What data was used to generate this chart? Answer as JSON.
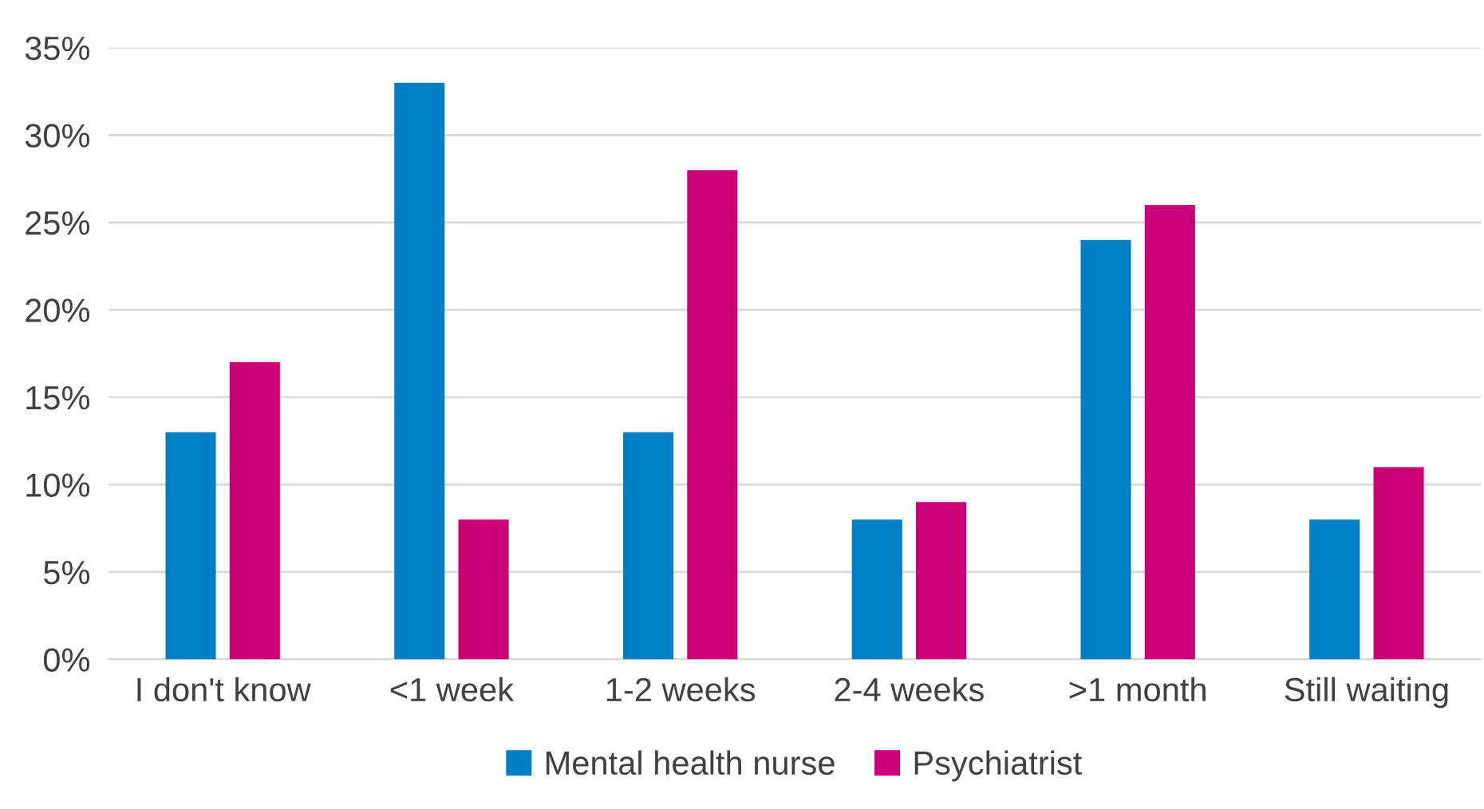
{
  "chart_data": {
    "type": "bar",
    "categories": [
      "I don't know",
      "<1 week",
      "1-2 weeks",
      "2-4 weeks",
      ">1 month",
      "Still waiting"
    ],
    "series": [
      {
        "name": "Mental health nurse",
        "color": "#0080c4",
        "values": [
          13,
          33,
          13,
          8,
          24,
          8
        ]
      },
      {
        "name": "Psychiatrist",
        "color": "#cc0077",
        "values": [
          17,
          8,
          28,
          9,
          26,
          11
        ]
      }
    ],
    "ylim": [
      0,
      35
    ],
    "yticks": [
      {
        "value": 0,
        "label": "0%"
      },
      {
        "value": 5,
        "label": "5%"
      },
      {
        "value": 10,
        "label": "10%"
      },
      {
        "value": 15,
        "label": "15%"
      },
      {
        "value": 20,
        "label": "20%"
      },
      {
        "value": 25,
        "label": "25%"
      },
      {
        "value": 30,
        "label": "30%"
      },
      {
        "value": 35,
        "label": "35%"
      }
    ],
    "grid": "y",
    "legend": "bottom"
  }
}
